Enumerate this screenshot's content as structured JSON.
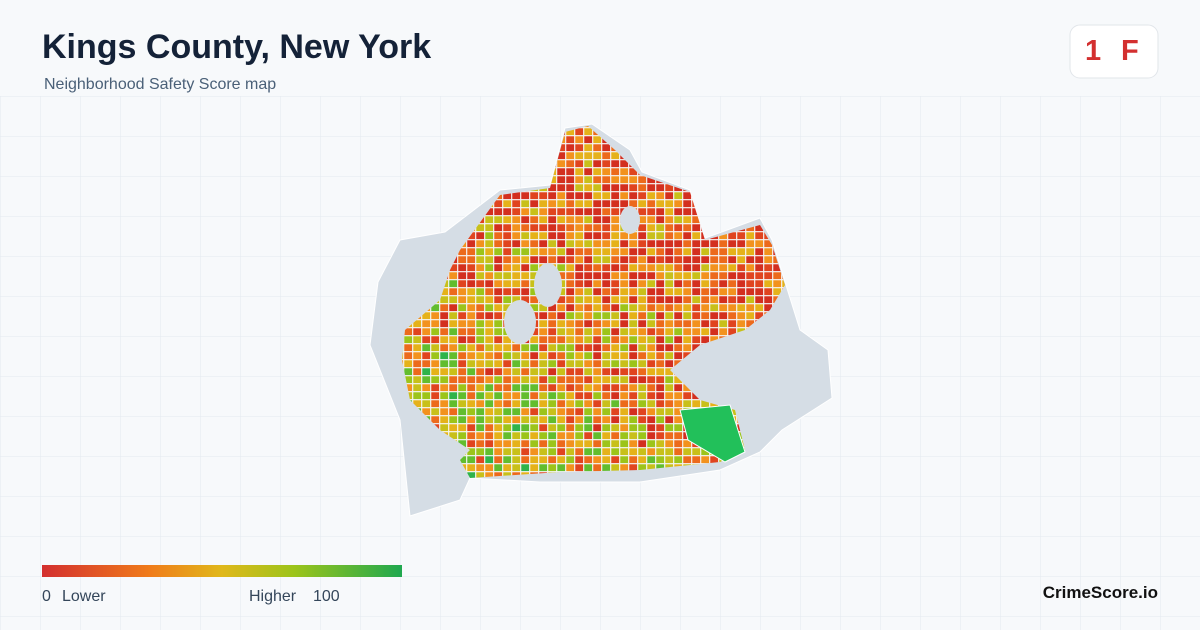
{
  "header": {
    "title": "Kings County, New York",
    "subtitle": "Neighborhood Safety Score map"
  },
  "score": {
    "rank": "1",
    "grade": "F"
  },
  "legend": {
    "min": "0",
    "min_label": "Lower",
    "max_label": "Higher",
    "max": "100"
  },
  "brand": "CrimeScore.io"
}
